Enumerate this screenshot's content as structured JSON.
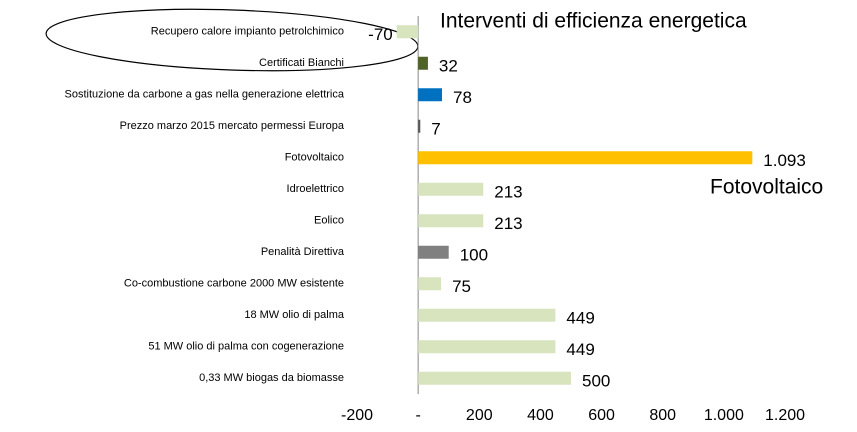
{
  "chart_data": {
    "type": "bar",
    "orientation": "horizontal",
    "categories": [
      "Recupero calore  impianto petrolchimico",
      "Certificati Bianchi",
      "Sostituzione da carbone a gas nella generazione elettrica",
      "Prezzo marzo 2015  mercato permessi Europa",
      "Fotovoltaico",
      "Idroelettrico",
      "Eolico",
      "Penalità Direttiva",
      "Co-combustione carbone 2000 MW esistente",
      "18 MW olio di palma",
      "51 MW olio di palma con cogenerazione",
      "0,33 MW biogas da biomasse"
    ],
    "values": [
      -70,
      32,
      78,
      7,
      1093,
      213,
      213,
      100,
      75,
      449,
      449,
      500
    ],
    "value_labels": [
      "-70",
      "32",
      "78",
      "7",
      "1.093",
      "213",
      "213",
      "100",
      "75",
      "449",
      "449",
      "500"
    ],
    "colors": [
      "#d7e4bd",
      "#4f6228",
      "#0070c0",
      "#595959",
      "#ffc000",
      "#d7e4bd",
      "#d7e4bd",
      "#808080",
      "#d7e4bd",
      "#d7e4bd",
      "#d7e4bd",
      "#d7e4bd"
    ],
    "xlim": [
      -200,
      1200
    ],
    "xticks": [
      -200,
      {
        "value": 0,
        "label": "-"
      },
      200,
      400,
      600,
      800,
      {
        "value": 1000,
        "label": "1.000"
      },
      {
        "value": 1200,
        "label": "1.200"
      }
    ],
    "annotations": [
      "Interventi di efficienza energetica",
      "Fotovoltaico"
    ]
  }
}
